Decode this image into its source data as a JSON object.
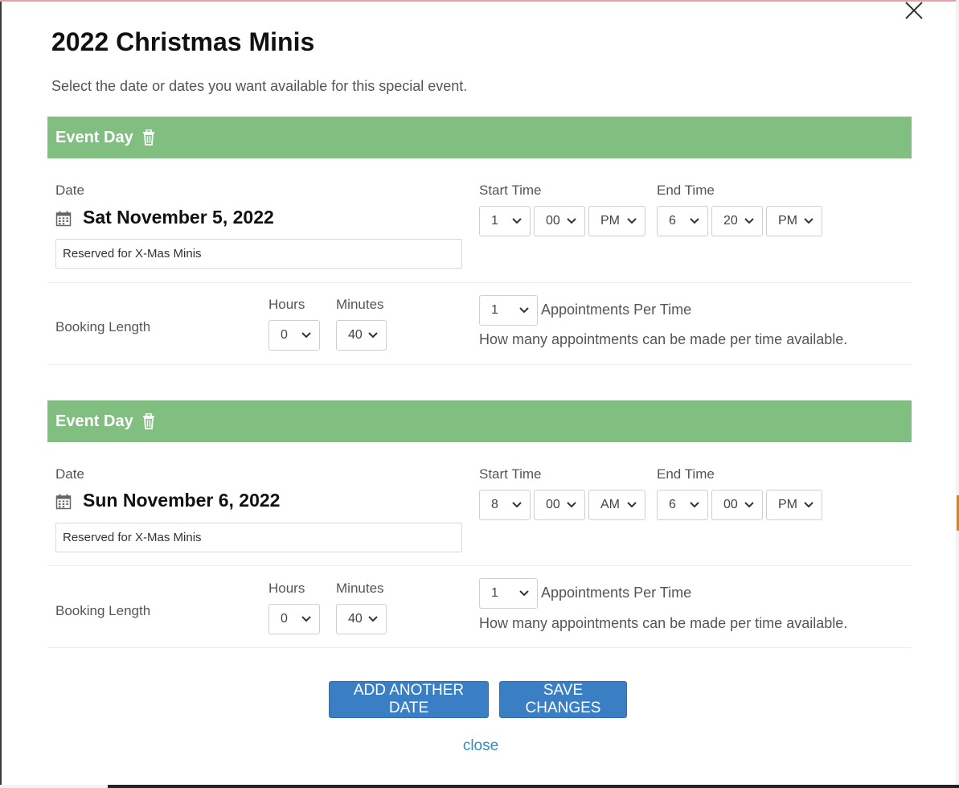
{
  "modal": {
    "title": "2022 Christmas Minis",
    "subtitle": "Select the date or dates you want available for this special event."
  },
  "labels": {
    "event_day": "Event Day",
    "date": "Date",
    "start_time": "Start Time",
    "end_time": "End Time",
    "booking_length": "Booking Length",
    "hours": "Hours",
    "minutes": "Minutes",
    "appointments_per_time": "Appointments Per Time",
    "appointments_help": "How many appointments can be made per time available."
  },
  "events": [
    {
      "date": "Sat November 5, 2022",
      "note": "Reserved for X-Mas Minis",
      "start": {
        "hour": "1",
        "minute": "00",
        "ampm": "PM"
      },
      "end": {
        "hour": "6",
        "minute": "20",
        "ampm": "PM"
      },
      "booking": {
        "hours": "0",
        "minutes": "40"
      },
      "appointments": "1"
    },
    {
      "date": "Sun November 6, 2022",
      "note": "Reserved for X-Mas Minis",
      "start": {
        "hour": "8",
        "minute": "00",
        "ampm": "AM"
      },
      "end": {
        "hour": "6",
        "minute": "00",
        "ampm": "PM"
      },
      "booking": {
        "hours": "0",
        "minutes": "40"
      },
      "appointments": "1"
    }
  ],
  "buttons": {
    "add_another_date": "ADD ANOTHER DATE",
    "save_changes": "SAVE CHANGES",
    "close": "close"
  },
  "colors": {
    "event_header": "#80bf7f",
    "primary_button": "#3a7fc4",
    "link": "#2c8fc8"
  },
  "icons": {
    "close": "close-icon",
    "trash": "trash-icon",
    "calendar": "calendar-icon",
    "chevron": "chevron-down-icon"
  }
}
